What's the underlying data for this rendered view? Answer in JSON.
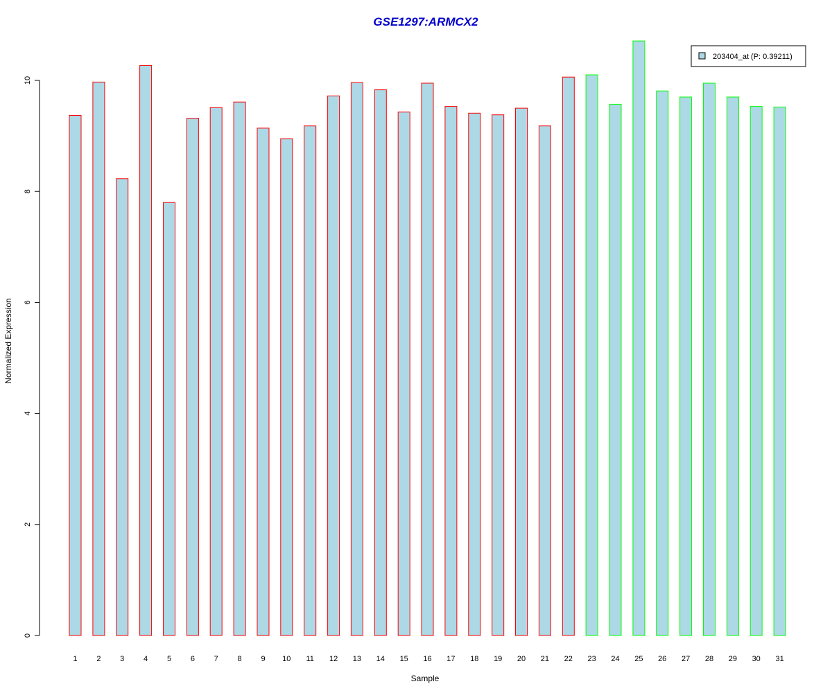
{
  "chart_data": {
    "type": "bar",
    "title": "GSE1297:ARMCX2",
    "title_color": "#0000CC",
    "xlabel": "Sample",
    "ylabel": "Normalized Expression",
    "categories": [
      "1",
      "2",
      "3",
      "4",
      "5",
      "6",
      "7",
      "8",
      "9",
      "10",
      "11",
      "12",
      "13",
      "14",
      "15",
      "16",
      "17",
      "18",
      "19",
      "20",
      "21",
      "22",
      "23",
      "24",
      "25",
      "26",
      "27",
      "28",
      "29",
      "30",
      "31"
    ],
    "values": [
      9.37,
      9.97,
      8.23,
      10.27,
      7.8,
      9.32,
      9.51,
      9.61,
      9.14,
      8.95,
      9.18,
      9.72,
      9.96,
      9.83,
      9.43,
      9.95,
      9.53,
      9.41,
      9.38,
      9.5,
      9.18,
      10.06,
      10.1,
      9.57,
      10.71,
      9.81,
      9.7,
      9.95,
      9.7,
      9.53,
      9.52
    ],
    "bar_fill": "#ADD8E6",
    "groups": [
      {
        "from": 0,
        "to": 21,
        "border_color": "#FF0000"
      },
      {
        "from": 22,
        "to": 30,
        "border_color": "#00FF00"
      }
    ],
    "ylim": [
      0,
      10.8
    ],
    "yticks": [
      0,
      2,
      4,
      6,
      8,
      10
    ],
    "grid": false,
    "legend": {
      "position": "top-right",
      "entries": [
        {
          "label": "203404_at (P: 0.39211)",
          "color": "#ADD8E6"
        }
      ]
    }
  }
}
